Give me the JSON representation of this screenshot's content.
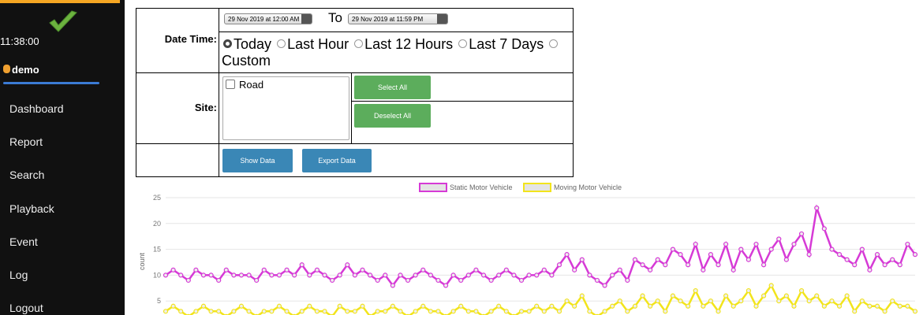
{
  "sidebar": {
    "time": "11:38:00",
    "user": "demo",
    "menu": [
      "Dashboard",
      "Report",
      "Search",
      "Playback",
      "Event",
      "Log",
      "Logout"
    ]
  },
  "form": {
    "date_label": "Date Time:",
    "from": "29 Nov 2019 at 12:00 AM",
    "to_label": "To",
    "to": "29 Nov 2019 at 11:59 PM",
    "ranges": [
      "Today",
      "Last Hour",
      "Last 12 Hours",
      "Last 7 Days",
      "Custom"
    ],
    "site_label": "Site:",
    "sites": [
      "Road"
    ],
    "select_all": "Select All",
    "deselect_all": "Deselect All",
    "show_data": "Show Data",
    "export_data": "Export Data"
  },
  "chart_data": {
    "type": "line",
    "ylabel": "count",
    "ylim": [
      0,
      25
    ],
    "yticks": [
      5,
      10,
      15,
      20,
      25
    ],
    "grid": true,
    "series": [
      {
        "name": "Static Motor Vehicle",
        "color": "#d63ad6",
        "values": [
          10,
          11,
          10,
          9,
          11,
          10,
          10,
          9,
          11,
          10,
          10,
          10,
          9,
          11,
          10,
          10,
          11,
          10,
          12,
          10,
          11,
          10,
          9,
          10,
          12,
          10,
          11,
          10,
          9,
          10,
          8,
          10,
          9,
          10,
          11,
          10,
          9,
          8,
          10,
          9,
          10,
          11,
          10,
          9,
          10,
          11,
          10,
          9,
          10,
          10,
          11,
          10,
          12,
          14,
          11,
          13,
          10,
          9,
          8,
          10,
          11,
          9,
          13,
          12,
          11,
          13,
          12,
          15,
          14,
          12,
          16,
          11,
          14,
          12,
          16,
          11,
          15,
          13,
          16,
          12,
          15,
          17,
          13,
          16,
          18,
          14,
          23,
          19,
          15,
          14,
          13,
          12,
          15,
          11,
          14,
          12,
          13,
          12,
          16,
          14
        ]
      },
      {
        "name": "Moving Motor Vehicle",
        "color": "#f2e41c",
        "values": [
          3,
          4,
          3,
          2,
          3,
          4,
          3,
          3,
          2,
          3,
          4,
          3,
          2,
          3,
          3,
          4,
          3,
          2,
          3,
          4,
          3,
          3,
          2,
          4,
          3,
          3,
          4,
          2,
          3,
          3,
          4,
          3,
          2,
          3,
          4,
          3,
          3,
          2,
          3,
          4,
          3,
          3,
          2,
          3,
          4,
          3,
          2,
          3,
          3,
          4,
          3,
          4,
          3,
          5,
          4,
          6,
          3,
          2,
          3,
          4,
          5,
          3,
          4,
          6,
          4,
          5,
          3,
          6,
          5,
          4,
          7,
          4,
          5,
          3,
          6,
          4,
          5,
          7,
          4,
          6,
          8,
          5,
          6,
          4,
          7,
          5,
          6,
          4,
          5,
          4,
          6,
          3,
          5,
          4,
          4,
          3,
          5,
          4,
          4,
          3
        ]
      }
    ]
  }
}
